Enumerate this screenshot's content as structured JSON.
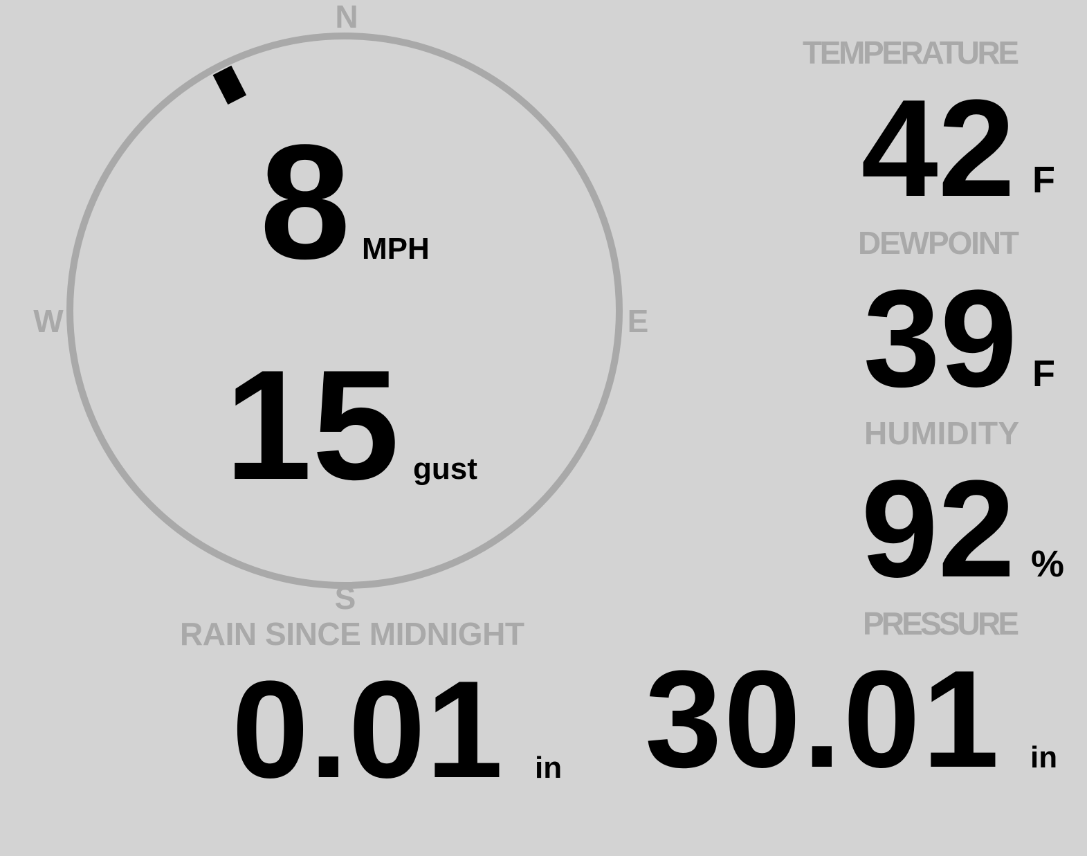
{
  "colors": {
    "background": "#d3d3d3",
    "label": "#a9a9a9",
    "value": "#000000",
    "dial": "#a9a9a9"
  },
  "wind": {
    "compass": {
      "n": "N",
      "e": "E",
      "s": "S",
      "w": "W"
    },
    "direction_degrees": 333,
    "speed": "8",
    "speed_unit": "MPH",
    "gust": "15",
    "gust_unit": "gust"
  },
  "temperature": {
    "label": "TEMPERATURE",
    "value": "42",
    "unit": "F"
  },
  "dewpoint": {
    "label": "DEWPOINT",
    "value": "39",
    "unit": "F"
  },
  "humidity": {
    "label": "HUMIDITY",
    "value": "92",
    "unit": "%"
  },
  "rain": {
    "label": "RAIN SINCE MIDNIGHT",
    "value": "0.01",
    "unit": "in"
  },
  "pressure": {
    "label": "PRESSURE",
    "value": "30.01",
    "unit": "in"
  }
}
